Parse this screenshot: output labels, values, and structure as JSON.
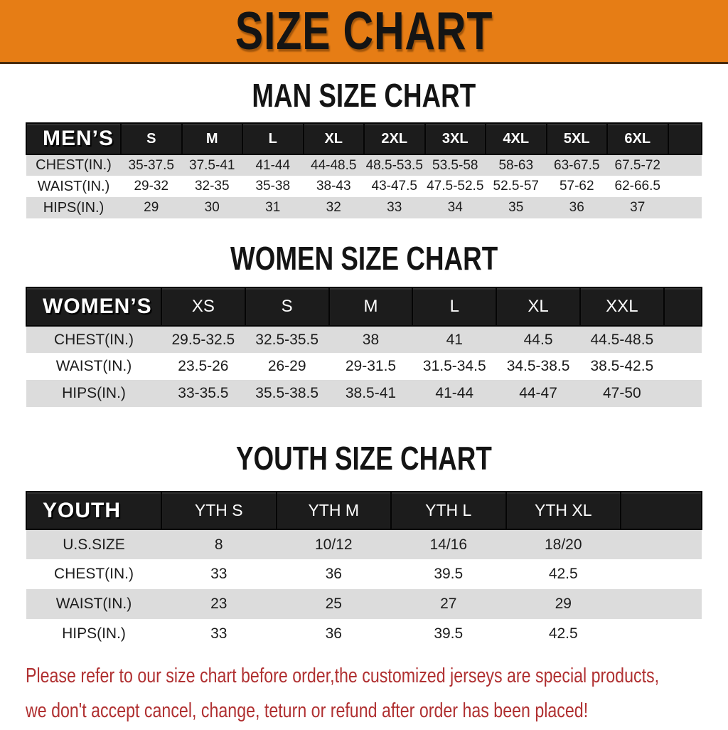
{
  "banner": {
    "title": "SIZE CHART"
  },
  "sections": [
    {
      "title": "MAN SIZE CHART",
      "header_label": "MEN’S",
      "columns": [
        "S",
        "M",
        "L",
        "XL",
        "2XL",
        "3XL",
        "4XL",
        "5XL",
        "6XL"
      ],
      "rows": [
        {
          "label": "CHEST(IN.)",
          "values": [
            "35-37.5",
            "37.5-41",
            "41-44",
            "44-48.5",
            "48.5-53.5",
            "53.5-58",
            "58-63",
            "63-67.5",
            "67.5-72"
          ]
        },
        {
          "label": "WAIST(IN.)",
          "values": [
            "29-32",
            "32-35",
            "35-38",
            "38-43",
            "43-47.5",
            "47.5-52.5",
            "52.5-57",
            "57-62",
            "62-66.5"
          ]
        },
        {
          "label": "HIPS(IN.)",
          "values": [
            "29",
            "30",
            "31",
            "32",
            "33",
            "34",
            "35",
            "36",
            "37"
          ]
        }
      ]
    },
    {
      "title": "WOMEN SIZE CHART",
      "header_label": "WOMEN’S",
      "columns": [
        "XS",
        "S",
        "M",
        "L",
        "XL",
        "XXL"
      ],
      "rows": [
        {
          "label": "CHEST(IN.)",
          "values": [
            "29.5-32.5",
            "32.5-35.5",
            "38",
            "41",
            "44.5",
            "44.5-48.5"
          ]
        },
        {
          "label": "WAIST(IN.)",
          "values": [
            "23.5-26",
            "26-29",
            "29-31.5",
            "31.5-34.5",
            "34.5-38.5",
            "38.5-42.5"
          ]
        },
        {
          "label": "HIPS(IN.)",
          "values": [
            "33-35.5",
            "35.5-38.5",
            "38.5-41",
            "41-44",
            "44-47",
            "47-50"
          ]
        }
      ]
    },
    {
      "title": "YOUTH SIZE CHART",
      "header_label": "YOUTH",
      "columns": [
        "YTH S",
        "YTH M",
        "YTH L",
        "YTH XL"
      ],
      "rows": [
        {
          "label": "U.S.SIZE",
          "values": [
            "8",
            "10/12",
            "14/16",
            "18/20"
          ]
        },
        {
          "label": "CHEST(IN.)",
          "values": [
            "33",
            "36",
            "39.5",
            "42.5"
          ]
        },
        {
          "label": "WAIST(IN.)",
          "values": [
            "23",
            "25",
            "27",
            "29"
          ]
        },
        {
          "label": "HIPS(IN.)",
          "values": [
            "33",
            "36",
            "39.5",
            "42.5"
          ]
        }
      ]
    }
  ],
  "footer": {
    "lines": [
      "Please refer to our size chart before order,the customized jerseys are special products,",
      "we don't accept cancel, change, teturn or refund after order has been placed!"
    ]
  },
  "colors": {
    "banner_orange": "#e67d15",
    "header_bar_black": "#1c1c1c",
    "row_gray": "#dcdcdc",
    "row_white": "#ffffff",
    "notice_red": "#b03031",
    "title_black": "#141414"
  }
}
